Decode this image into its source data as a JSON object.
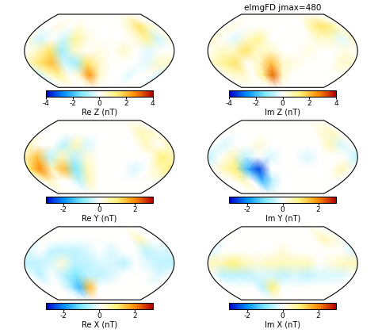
{
  "chart_data": [
    {
      "type": "heatmap",
      "colorbar_label": "Re Z (nT)",
      "colorbar_range": [
        -4,
        4
      ],
      "colorbar_ticks": [
        -4,
        -2,
        0,
        2,
        4
      ],
      "lon": [
        20,
        50,
        80,
        110,
        140,
        170,
        200,
        230,
        260,
        290,
        320,
        350,
        380
      ],
      "lat": [
        90,
        60,
        30,
        0,
        -30,
        -60,
        -90
      ],
      "cells": [
        [
          0,
          0,
          0,
          0,
          0,
          0,
          0,
          0,
          0,
          0,
          0,
          0,
          0
        ],
        [
          0,
          0,
          0.3,
          0,
          0.3,
          0,
          0,
          0,
          0,
          0.5,
          1.5,
          0.5,
          0
        ],
        [
          0.3,
          -0.5,
          0,
          -0.5,
          1,
          0.3,
          0,
          0,
          0,
          0.3,
          1,
          -0.5,
          0.3
        ],
        [
          0,
          0.5,
          1.5,
          -1,
          0.5,
          0,
          0.3,
          0,
          0.5,
          0,
          -0.3,
          0,
          0
        ],
        [
          0.5,
          1.5,
          2,
          -0.5,
          -1,
          1.5,
          0.5,
          0,
          0,
          0,
          -0.3,
          0.5,
          0.5
        ],
        [
          -0.5,
          0.5,
          1,
          0,
          0.5,
          2.5,
          0.5,
          0,
          0,
          -0.3,
          0,
          0,
          -0.5
        ],
        [
          0,
          0,
          0,
          0,
          0,
          0,
          0,
          0,
          0,
          0,
          0,
          0,
          0
        ]
      ]
    },
    {
      "type": "heatmap",
      "title": "eImgFD jmax=480",
      "colorbar_label": "Im Z (nT)",
      "colorbar_range": [
        -4,
        4
      ],
      "colorbar_ticks": [
        -4,
        -2,
        0,
        2,
        4
      ],
      "lon": [
        20,
        50,
        80,
        110,
        140,
        170,
        200,
        230,
        260,
        290,
        320,
        350,
        380
      ],
      "lat": [
        90,
        60,
        30,
        0,
        -30,
        -60,
        -90
      ],
      "cells": [
        [
          0,
          0,
          0,
          0,
          0,
          0,
          0,
          0,
          0,
          0,
          0,
          0,
          0
        ],
        [
          0,
          0.3,
          0,
          0,
          0,
          0,
          0,
          0,
          0,
          1,
          1.5,
          1,
          0
        ],
        [
          0.5,
          0,
          -0.3,
          0.5,
          1,
          0,
          0,
          0,
          0,
          0.5,
          0.5,
          -0.3,
          0.5
        ],
        [
          0,
          0.5,
          0.5,
          1.5,
          0.5,
          0.5,
          0,
          0,
          0.3,
          0,
          0,
          0.3,
          0
        ],
        [
          0.5,
          1,
          1.5,
          0,
          0.5,
          2,
          0.5,
          0.3,
          0,
          0,
          0,
          0.5,
          0.5
        ],
        [
          0,
          0.5,
          0.5,
          0,
          1,
          3,
          0.5,
          0,
          0,
          0,
          0,
          0,
          0
        ],
        [
          0,
          0,
          0,
          0,
          0,
          0,
          0,
          0,
          0,
          0,
          0,
          0,
          0
        ]
      ]
    },
    {
      "type": "heatmap",
      "colorbar_label": "Re Y (nT)",
      "colorbar_range": [
        -3,
        3
      ],
      "colorbar_ticks": [
        -2,
        0,
        2
      ],
      "lon": [
        20,
        50,
        80,
        110,
        140,
        170,
        200,
        230,
        260,
        290,
        320,
        350,
        380
      ],
      "lat": [
        90,
        60,
        30,
        0,
        -30,
        -60,
        -90
      ],
      "cells": [
        [
          0,
          0,
          0,
          0,
          0,
          0,
          0,
          0,
          0,
          0,
          0,
          0,
          0
        ],
        [
          0,
          0,
          0,
          0,
          0,
          0,
          0,
          0,
          0,
          0,
          0.5,
          0.5,
          0
        ],
        [
          0.5,
          0,
          0,
          -0.5,
          0.5,
          -0.3,
          0,
          0,
          0,
          0,
          0.5,
          0,
          0.5
        ],
        [
          0.5,
          1.5,
          -0.5,
          0.5,
          -0.5,
          0.3,
          0,
          0,
          0,
          0,
          0,
          1,
          0.5
        ],
        [
          1,
          2,
          0.5,
          1.5,
          -1,
          0.5,
          0,
          0,
          0,
          -0.3,
          0,
          0.5,
          1
        ],
        [
          0,
          0.5,
          0,
          0,
          -0.5,
          0.5,
          0,
          0,
          0,
          0,
          0,
          0,
          0
        ],
        [
          0,
          0,
          0,
          0,
          0,
          0,
          0,
          0,
          0,
          0,
          0,
          0,
          0
        ]
      ]
    },
    {
      "type": "heatmap",
      "colorbar_label": "Im Y (nT)",
      "colorbar_range": [
        -3,
        3
      ],
      "colorbar_ticks": [
        -2,
        0,
        2
      ],
      "lon": [
        20,
        50,
        80,
        110,
        140,
        170,
        200,
        230,
        260,
        290,
        320,
        350,
        380
      ],
      "lat": [
        90,
        60,
        30,
        0,
        -30,
        -60,
        -90
      ],
      "cells": [
        [
          0,
          0,
          0,
          0,
          0,
          0,
          0,
          0,
          0,
          0,
          0,
          0,
          0
        ],
        [
          0,
          0,
          0,
          0,
          0,
          0,
          0,
          0,
          0,
          0,
          0.3,
          0.5,
          0
        ],
        [
          0,
          -0.3,
          0,
          0,
          0.3,
          0,
          0,
          0,
          0,
          0,
          0.5,
          -0.3,
          0
        ],
        [
          -0.5,
          0,
          0.5,
          -0.5,
          0,
          -0.3,
          0,
          0,
          -0.3,
          0,
          0,
          0,
          -0.5
        ],
        [
          0,
          0.5,
          1,
          -1.5,
          -2.5,
          0,
          0,
          0,
          0,
          0,
          0,
          0.5,
          0
        ],
        [
          0,
          0,
          0.5,
          0,
          -1.5,
          -0.5,
          0,
          0,
          0,
          0,
          0,
          0,
          0
        ],
        [
          0,
          0,
          0,
          0,
          0,
          0,
          0,
          0,
          0,
          0,
          0,
          0,
          0
        ]
      ]
    },
    {
      "type": "heatmap",
      "colorbar_label": "Re X (nT)",
      "colorbar_range": [
        -3,
        3
      ],
      "colorbar_ticks": [
        -2,
        0,
        2
      ],
      "lon": [
        20,
        50,
        80,
        110,
        140,
        170,
        200,
        230,
        260,
        290,
        320,
        350,
        380
      ],
      "lat": [
        90,
        60,
        30,
        0,
        -30,
        -60,
        -90
      ],
      "cells": [
        [
          0,
          0,
          0,
          0,
          0,
          0,
          0,
          0,
          0,
          0,
          0,
          0,
          0
        ],
        [
          0,
          0,
          0,
          0,
          0,
          0,
          0,
          0,
          0,
          0,
          0.5,
          0,
          0
        ],
        [
          -0.3,
          0,
          -0.5,
          -0.5,
          -0.5,
          -0.3,
          0,
          -0.3,
          0,
          0,
          -0.5,
          -0.3,
          -0.3
        ],
        [
          -0.5,
          -0.5,
          -0.3,
          0.3,
          -0.5,
          -0.5,
          -0.3,
          -0.3,
          -0.5,
          0,
          -0.3,
          -0.5,
          -0.5
        ],
        [
          0,
          -0.5,
          0,
          -0.5,
          -1,
          -0.5,
          -0.5,
          -0.3,
          0,
          0,
          0,
          -0.3,
          0
        ],
        [
          0,
          0,
          0,
          -0.5,
          -1.5,
          1.5,
          0,
          0,
          0,
          0,
          0,
          0,
          0
        ],
        [
          0,
          0,
          0,
          0,
          0,
          0,
          0,
          0,
          0,
          0,
          0,
          0,
          0
        ]
      ]
    },
    {
      "type": "heatmap",
      "colorbar_label": "Im X (nT)",
      "colorbar_range": [
        -3,
        3
      ],
      "colorbar_ticks": [
        -2,
        0,
        2
      ],
      "lon": [
        20,
        50,
        80,
        110,
        140,
        170,
        200,
        230,
        260,
        290,
        320,
        350,
        380
      ],
      "lat": [
        90,
        60,
        30,
        0,
        -30,
        -60,
        -90
      ],
      "cells": [
        [
          0,
          0,
          0,
          0,
          0,
          0,
          0,
          0,
          0,
          0,
          0,
          0,
          0
        ],
        [
          0,
          0,
          0,
          0,
          0,
          0,
          0,
          0,
          0,
          0,
          0.5,
          0.3,
          0
        ],
        [
          -0.3,
          0,
          0,
          0,
          0,
          0,
          0.3,
          0,
          0,
          0,
          0,
          0,
          -0.3
        ],
        [
          0.5,
          0.5,
          1,
          0.5,
          0.3,
          0.5,
          0.5,
          0.5,
          0.5,
          0,
          0.3,
          0.5,
          0.5
        ],
        [
          0,
          -0.5,
          -0.5,
          -0.5,
          -0.3,
          -0.3,
          -0.5,
          -0.3,
          -0.5,
          -0.3,
          -0.3,
          -0.3,
          0
        ],
        [
          0,
          0,
          0,
          0,
          -0.5,
          1,
          0,
          0,
          0,
          0,
          0,
          0,
          0
        ],
        [
          0,
          0,
          0,
          0,
          0,
          0,
          0,
          0,
          0,
          0,
          0,
          0,
          0
        ]
      ]
    }
  ]
}
